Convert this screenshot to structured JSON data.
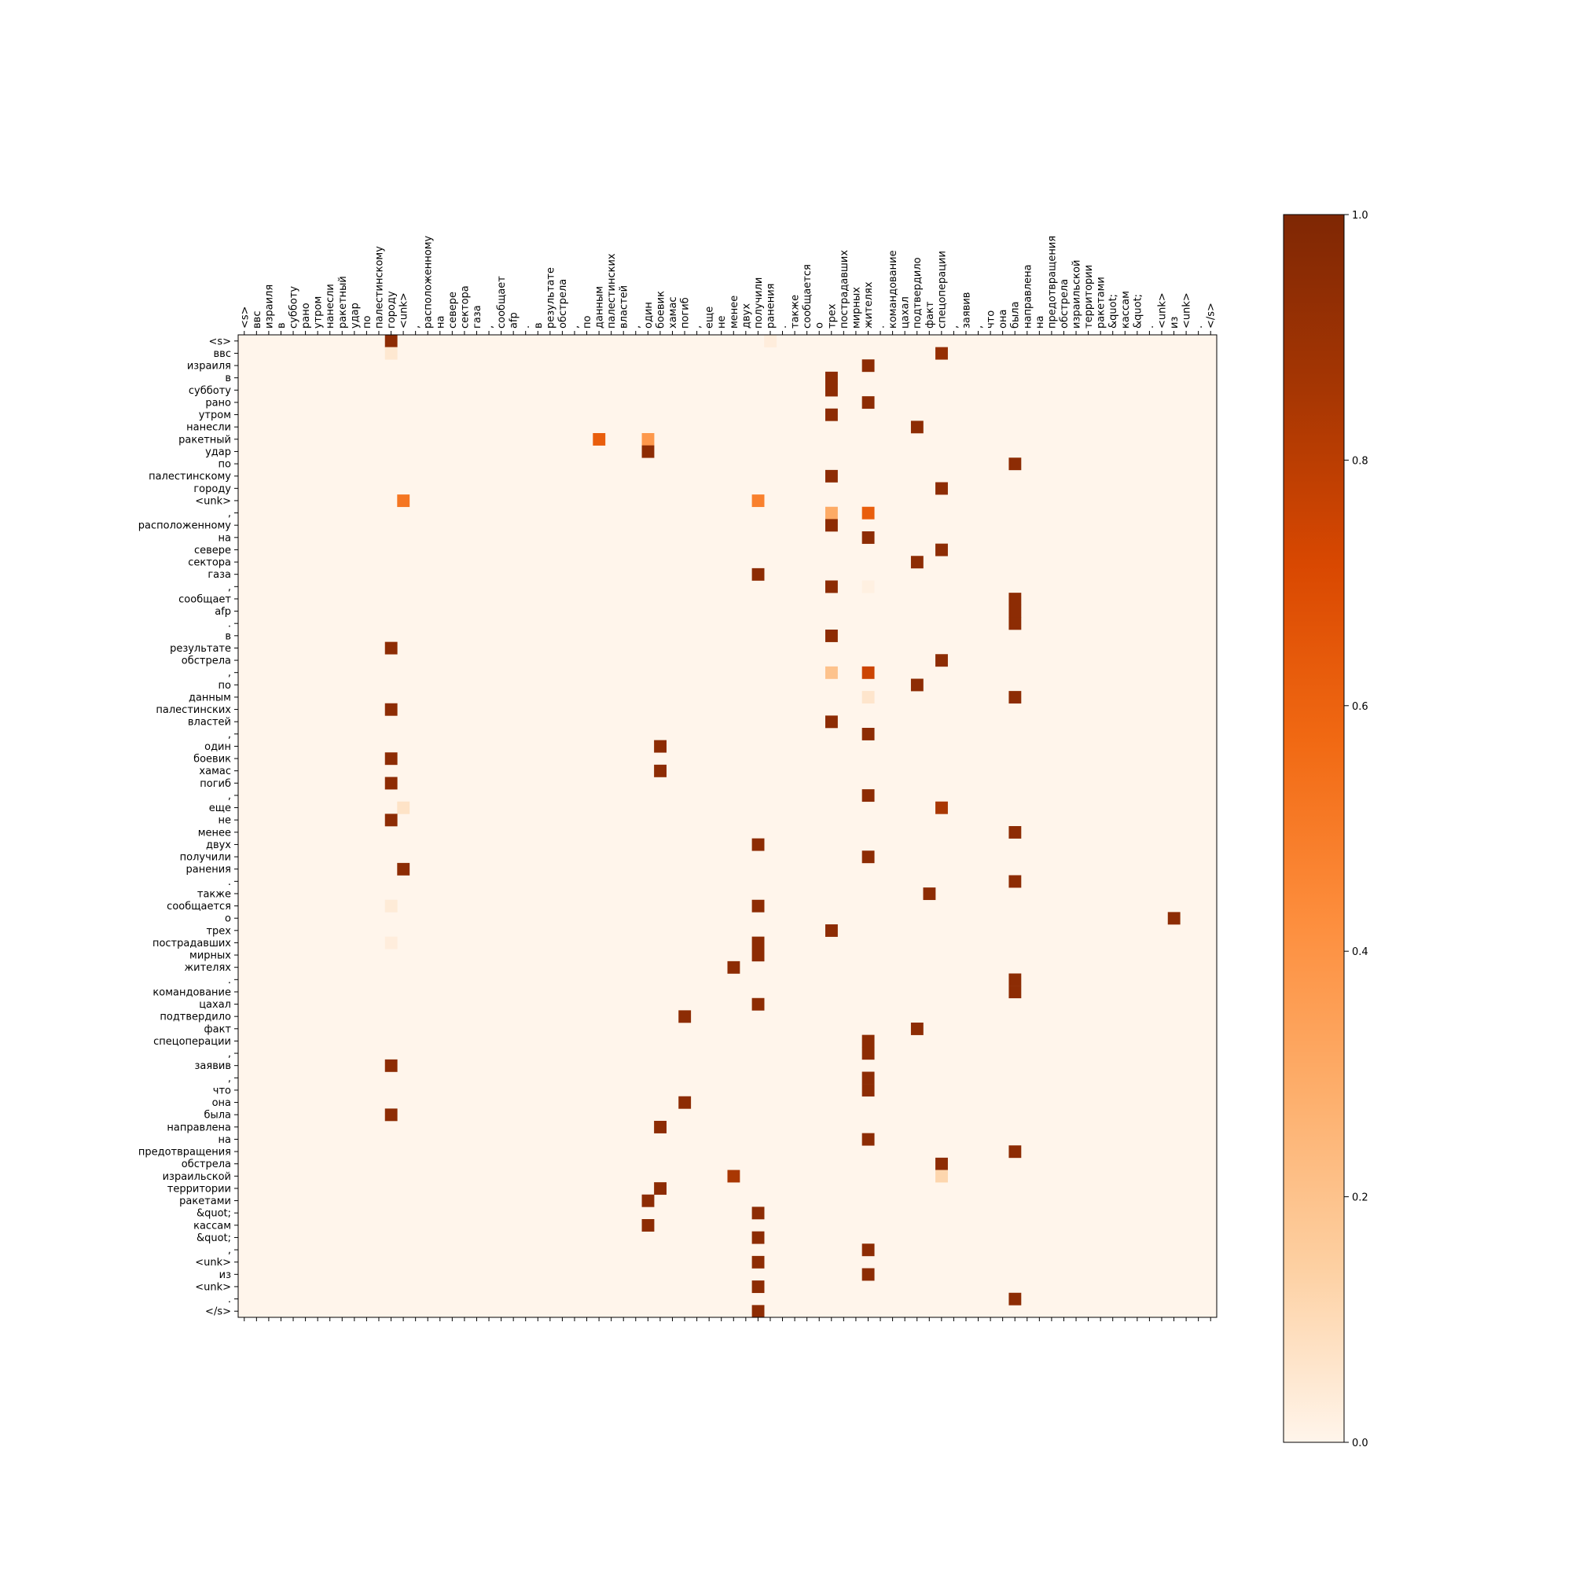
{
  "chart_data": {
    "type": "heatmap",
    "title": "",
    "xlabel": "",
    "ylabel": "",
    "x_tokens": [
      "<s>",
      "ввс",
      "израиля",
      "в",
      "субботу",
      "рано",
      "утром",
      "нанесли",
      "ракетный",
      "удар",
      "по",
      "палестинскому",
      "городу",
      "<unk>",
      ",",
      "расположенному",
      "на",
      "севере",
      "сектора",
      "газа",
      ",",
      "сообщает",
      "afp",
      ".",
      "в",
      "результате",
      "обстрела",
      ",",
      "по",
      "данным",
      "палестинских",
      "властей",
      ",",
      "один",
      "боевик",
      "хамас",
      "погиб",
      ",",
      "еще",
      "не",
      "менее",
      "двух",
      "получили",
      "ранения",
      ".",
      "также",
      "сообщается",
      "о",
      "трех",
      "пострадавших",
      "мирных",
      "жителях",
      ".",
      "командование",
      "цахал",
      "подтвердило",
      "факт",
      "спецоперации",
      ",",
      "заявив",
      ",",
      "что",
      "она",
      "была",
      "направлена",
      "на",
      "предотвращения",
      "обстрела",
      "израильской",
      "территории",
      "ракетами",
      "&quot;",
      "кассам",
      "&quot;",
      ".",
      "<unk>",
      "из",
      "<unk>",
      ".",
      "</s>"
    ],
    "y_tokens": [
      "<s>",
      "ввс",
      "израиля",
      "в",
      "субботу",
      "рано",
      "утром",
      "нанесли",
      "ракетный",
      "удар",
      "по",
      "палестинскому",
      "городу",
      "<unk>",
      ",",
      "расположенному",
      "на",
      "севере",
      "сектора",
      "газа",
      ",",
      "сообщает",
      "afp",
      ".",
      "в",
      "результате",
      "обстрела",
      ",",
      "по",
      "данным",
      "палестинских",
      "властей",
      ",",
      "один",
      "боевик",
      "хамас",
      "погиб",
      ",",
      "еще",
      "не",
      "менее",
      "двух",
      "получили",
      "ранения",
      ".",
      "также",
      "сообщается",
      "о",
      "трех",
      "пострадавших",
      "мирных",
      "жителях",
      ".",
      "командование",
      "цахал",
      "подтвердило",
      "факт",
      "спецоперации",
      ",",
      "заявив",
      ",",
      "что",
      "она",
      "была",
      "направлена",
      "на",
      "предотвращения",
      "обстрела",
      "израильской",
      "территории",
      "ракетами",
      "&quot;",
      "кассам",
      "&quot;",
      ",",
      "<unk>",
      "из",
      "<unk>",
      ".",
      "</s>"
    ],
    "cells": [
      [
        0,
        12,
        0.95
      ],
      [
        0,
        43,
        0.03
      ],
      [
        1,
        57,
        0.92
      ],
      [
        1,
        12,
        0.05
      ],
      [
        2,
        51,
        0.95
      ],
      [
        3,
        48,
        0.95
      ],
      [
        4,
        48,
        0.95
      ],
      [
        5,
        51,
        0.95
      ],
      [
        6,
        48,
        0.95
      ],
      [
        7,
        55,
        0.95
      ],
      [
        8,
        29,
        0.62
      ],
      [
        8,
        33,
        0.38
      ],
      [
        9,
        33,
        0.95
      ],
      [
        10,
        63,
        0.95
      ],
      [
        11,
        48,
        0.95
      ],
      [
        12,
        57,
        0.95
      ],
      [
        13,
        13,
        0.52
      ],
      [
        13,
        42,
        0.48
      ],
      [
        14,
        48,
        0.3
      ],
      [
        14,
        51,
        0.62
      ],
      [
        15,
        48,
        0.95
      ],
      [
        16,
        51,
        0.95
      ],
      [
        17,
        57,
        0.95
      ],
      [
        18,
        55,
        0.95
      ],
      [
        19,
        42,
        0.95
      ],
      [
        20,
        48,
        0.95
      ],
      [
        20,
        51,
        0.02
      ],
      [
        21,
        63,
        0.95
      ],
      [
        22,
        63,
        0.95
      ],
      [
        23,
        63,
        0.95
      ],
      [
        24,
        48,
        0.95
      ],
      [
        25,
        12,
        0.95
      ],
      [
        26,
        57,
        0.95
      ],
      [
        27,
        48,
        0.2
      ],
      [
        27,
        51,
        0.75
      ],
      [
        28,
        55,
        0.95
      ],
      [
        29,
        63,
        0.95
      ],
      [
        29,
        51,
        0.06
      ],
      [
        30,
        12,
        0.95
      ],
      [
        31,
        48,
        0.95
      ],
      [
        32,
        51,
        0.95
      ],
      [
        33,
        34,
        0.95
      ],
      [
        34,
        12,
        0.95
      ],
      [
        35,
        34,
        0.95
      ],
      [
        36,
        12,
        0.95
      ],
      [
        37,
        51,
        0.95
      ],
      [
        38,
        57,
        0.85
      ],
      [
        38,
        13,
        0.07
      ],
      [
        39,
        12,
        0.95
      ],
      [
        40,
        63,
        0.95
      ],
      [
        41,
        42,
        0.95
      ],
      [
        42,
        51,
        0.95
      ],
      [
        43,
        13,
        0.95
      ],
      [
        44,
        63,
        0.95
      ],
      [
        45,
        56,
        0.95
      ],
      [
        46,
        42,
        0.95
      ],
      [
        46,
        12,
        0.04
      ],
      [
        47,
        76,
        0.95
      ],
      [
        48,
        48,
        0.95
      ],
      [
        49,
        42,
        0.95
      ],
      [
        49,
        12,
        0.03
      ],
      [
        50,
        42,
        0.95
      ],
      [
        51,
        40,
        0.95
      ],
      [
        52,
        63,
        0.95
      ],
      [
        53,
        63,
        0.95
      ],
      [
        54,
        42,
        0.95
      ],
      [
        55,
        36,
        0.95
      ],
      [
        56,
        55,
        0.95
      ],
      [
        57,
        51,
        0.95
      ],
      [
        58,
        51,
        0.95
      ],
      [
        59,
        12,
        0.95
      ],
      [
        60,
        51,
        0.95
      ],
      [
        61,
        51,
        0.95
      ],
      [
        62,
        36,
        0.95
      ],
      [
        63,
        12,
        0.95
      ],
      [
        64,
        34,
        0.95
      ],
      [
        65,
        51,
        0.95
      ],
      [
        66,
        63,
        0.95
      ],
      [
        67,
        57,
        0.95
      ],
      [
        68,
        40,
        0.85
      ],
      [
        68,
        57,
        0.12
      ],
      [
        69,
        34,
        0.95
      ],
      [
        70,
        33,
        0.95
      ],
      [
        71,
        42,
        0.95
      ],
      [
        72,
        33,
        0.95
      ],
      [
        73,
        42,
        0.95
      ],
      [
        74,
        51,
        0.95
      ],
      [
        75,
        42,
        0.95
      ],
      [
        76,
        51,
        0.95
      ],
      [
        77,
        42,
        0.95
      ],
      [
        78,
        63,
        0.95
      ],
      [
        79,
        42,
        0.95
      ]
    ],
    "colorbar": {
      "range": [
        0.0,
        1.0
      ],
      "ticks": [
        "0.0",
        "0.2",
        "0.4",
        "0.6",
        "0.8",
        "1.0"
      ],
      "colors": [
        "#fff5eb",
        "#fdd0a2",
        "#fdae6b",
        "#fd8d3c",
        "#f16913",
        "#d94801",
        "#a63603",
        "#7f2704"
      ]
    },
    "grid": false,
    "legend": "colorbar-right"
  }
}
